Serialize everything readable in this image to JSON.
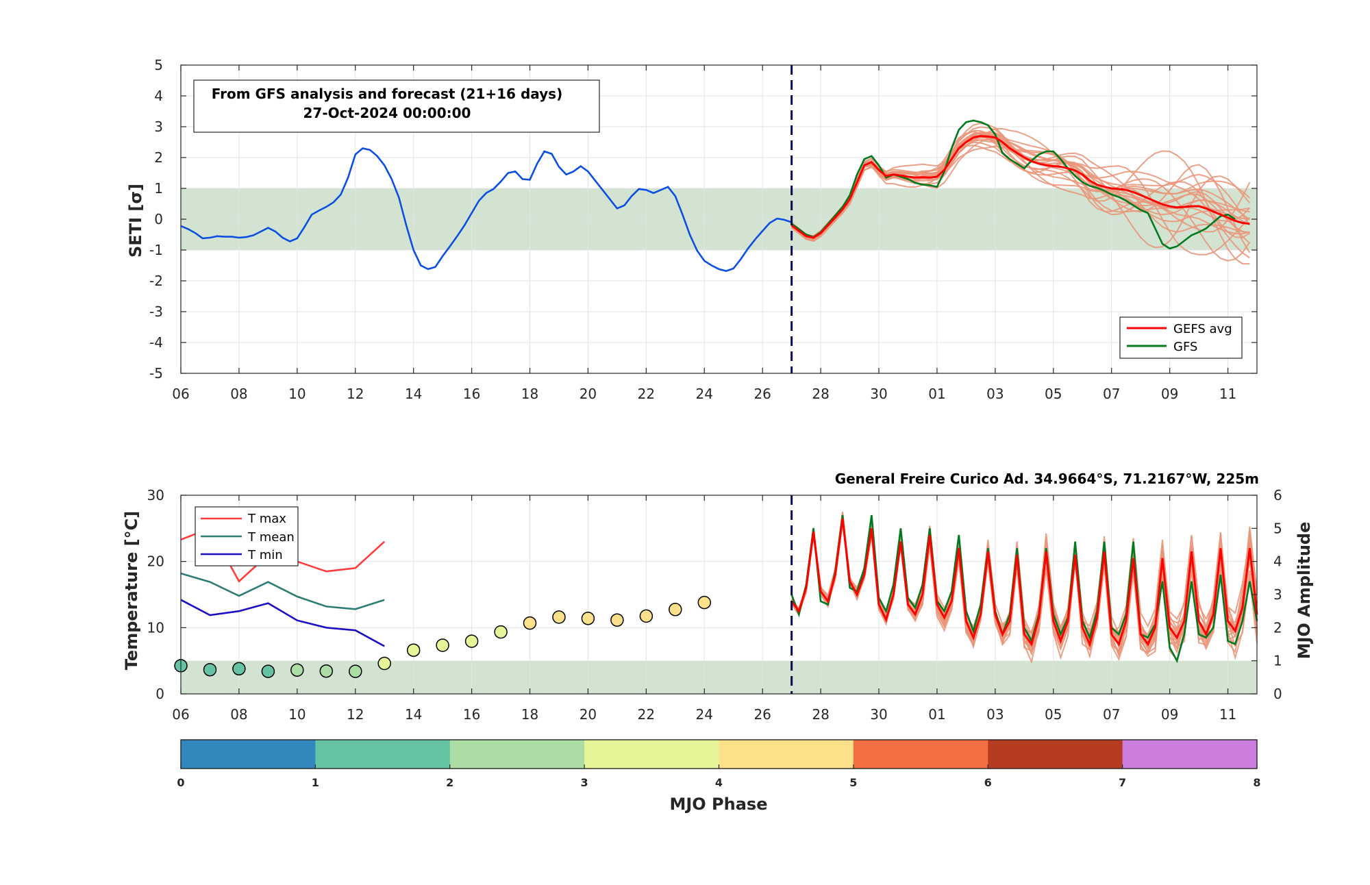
{
  "chart_data": [
    {
      "type": "line",
      "ylabel": "SETI [σ]",
      "ylim": [
        -5,
        5
      ],
      "yticks": [
        "5",
        "4",
        "3",
        "2",
        "1",
        "0",
        "-1",
        "-2",
        "-3",
        "-4",
        "-5"
      ],
      "x_range_days": [
        "2024-10-06",
        "2024-11-12"
      ],
      "xtick_labels": [
        "06",
        "08",
        "10",
        "12",
        "14",
        "16",
        "18",
        "20",
        "22",
        "24",
        "26",
        "28",
        "30",
        "01",
        "03",
        "05",
        "07",
        "09",
        "11"
      ],
      "normal_band": [
        -1,
        1
      ],
      "forecast_start": "2024-10-27",
      "info_box": {
        "line1": "From GFS analysis and forecast (21+16 days)",
        "line2": "27-Oct-2024 00:00:00"
      },
      "legend": {
        "items": [
          "GEFS avg",
          "GFS"
        ],
        "position": "bottom-right"
      },
      "colors": {
        "analysis": "#0c4fe0",
        "gefs_avg": "#ff0000",
        "gfs": "#007a1f",
        "members": "#e9967a",
        "band": "#d2e3d2",
        "forecast_line": "#0a0a50"
      },
      "grid": true,
      "series": [
        {
          "x_start": "2024-10-06",
          "step_days": 0.25,
          "values": [
            -0.22,
            -0.32,
            -0.45,
            -0.62,
            -0.6,
            -0.55,
            -0.57,
            -0.57,
            -0.6,
            -0.58,
            -0.52,
            -0.4,
            -0.28,
            -0.4,
            -0.6,
            -0.72,
            -0.62,
            -0.25,
            0.15,
            0.28,
            0.4,
            0.55,
            0.8,
            1.35,
            2.1,
            2.3,
            2.25,
            2.05,
            1.75,
            1.3,
            0.7,
            -0.2,
            -1.0,
            -1.5,
            -1.62,
            -1.55,
            -1.2,
            -0.88,
            -0.55,
            -0.2,
            0.2,
            0.6,
            0.85,
            0.98,
            1.22,
            1.5,
            1.55,
            1.3,
            1.28,
            1.8,
            2.2,
            2.12,
            1.7,
            1.45,
            1.55,
            1.72,
            1.55,
            1.25,
            0.95,
            0.65,
            0.35,
            0.45,
            0.75,
            0.98,
            0.95,
            0.85,
            0.95,
            1.05,
            0.75,
            0.15,
            -0.5,
            -1.02,
            -1.35,
            -1.5,
            -1.62,
            -1.68,
            -1.6,
            -1.3,
            -0.95,
            -0.65,
            -0.38,
            -0.12,
            0.02,
            -0.02,
            -0.1
          ]
        },
        {
          "name": "GEFS avg",
          "x_start": "2024-10-27",
          "step_days": 0.25,
          "values": [
            -0.2,
            -0.38,
            -0.55,
            -0.6,
            -0.45,
            -0.2,
            0.05,
            0.32,
            0.65,
            1.2,
            1.75,
            1.85,
            1.6,
            1.4,
            1.45,
            1.42,
            1.38,
            1.35,
            1.36,
            1.35,
            1.38,
            1.6,
            1.95,
            2.3,
            2.5,
            2.65,
            2.7,
            2.68,
            2.65,
            2.5,
            2.3,
            2.15,
            2.0,
            1.88,
            1.8,
            1.75,
            1.72,
            1.7,
            1.65,
            1.58,
            1.45,
            1.25,
            1.12,
            1.05,
            1.0,
            0.98,
            0.95,
            0.88,
            0.78,
            0.68,
            0.58,
            0.48,
            0.42,
            0.38,
            0.4,
            0.42,
            0.42,
            0.35,
            0.25,
            0.15,
            0.05,
            -0.05,
            -0.12,
            -0.15
          ]
        },
        {
          "name": "GFS",
          "x_start": "2024-10-27",
          "step_days": 0.25,
          "values": [
            -0.15,
            -0.32,
            -0.5,
            -0.58,
            -0.42,
            -0.15,
            0.12,
            0.4,
            0.78,
            1.45,
            1.95,
            2.05,
            1.75,
            1.35,
            1.45,
            1.38,
            1.3,
            1.18,
            1.12,
            1.1,
            1.05,
            1.55,
            2.3,
            2.9,
            3.15,
            3.2,
            3.15,
            3.05,
            2.75,
            2.15,
            1.95,
            1.8,
            1.65,
            1.9,
            2.1,
            2.2,
            2.2,
            1.95,
            1.65,
            1.4,
            1.2,
            1.08,
            1.02,
            0.92,
            0.8,
            0.72,
            0.6,
            0.45,
            0.3,
            0.2,
            -0.3,
            -0.8,
            -0.95,
            -0.88,
            -0.7,
            -0.52,
            -0.42,
            -0.3,
            -0.1,
            0.1,
            0.15,
            0.0
          ]
        }
      ]
    },
    {
      "type": "line",
      "title": "General Freire Curico Ad. 34.9664°S, 71.2167°W, 225m",
      "ylabel": "Temperature [°C]",
      "y2label": "MJO Amplitude",
      "ylim": [
        0,
        30
      ],
      "y2lim": [
        0,
        6
      ],
      "yticks": [
        "30",
        "20",
        "10",
        "0"
      ],
      "y2ticks": [
        "6",
        "5",
        "4",
        "3",
        "2",
        "1",
        "0"
      ],
      "x_range_days": [
        "2024-10-06",
        "2024-11-12"
      ],
      "xtick_labels": [
        "06",
        "08",
        "10",
        "12",
        "14",
        "16",
        "18",
        "20",
        "22",
        "24",
        "26",
        "28",
        "30",
        "01",
        "03",
        "05",
        "07",
        "09",
        "11"
      ],
      "normal_band_mjo_amplitude": [
        0,
        1
      ],
      "forecast_start": "2024-10-27",
      "legend": {
        "items": [
          "T max",
          "T mean",
          "T min"
        ],
        "position": "top-left"
      },
      "colors": {
        "tmax": "#ff3b3b",
        "tmean": "#2e7d74",
        "tmin": "#1a0fc4",
        "gefs_avg": "#ff0000",
        "gfs": "#007a1f",
        "members": "#e9967a",
        "band": "#d2e3d2"
      },
      "grid": true,
      "series": [
        {
          "name": "T max",
          "x": [
            "2024-10-06",
            "2024-10-07",
            "2024-10-08",
            "2024-10-09",
            "2024-10-10",
            "2024-10-11",
            "2024-10-12",
            "2024-10-13"
          ],
          "values": [
            23.3,
            25.0,
            17.0,
            21.0,
            20.0,
            18.5,
            19.0,
            23.0
          ]
        },
        {
          "name": "T mean",
          "x": [
            "2024-10-06",
            "2024-10-07",
            "2024-10-08",
            "2024-10-09",
            "2024-10-10",
            "2024-10-11",
            "2024-10-12",
            "2024-10-13"
          ],
          "values": [
            18.2,
            16.9,
            14.8,
            16.9,
            14.7,
            13.2,
            12.8,
            14.2
          ]
        },
        {
          "name": "T min",
          "x": [
            "2024-10-06",
            "2024-10-07",
            "2024-10-08",
            "2024-10-09",
            "2024-10-10",
            "2024-10-11",
            "2024-10-12",
            "2024-10-13"
          ],
          "values": [
            14.2,
            11.9,
            12.5,
            13.7,
            11.1,
            10.0,
            9.6,
            7.2
          ]
        },
        {
          "name": "MJO amplitude / phase (dots)",
          "x_start": "2024-10-06",
          "step_days": 1,
          "amplitude": [
            0.85,
            0.73,
            0.76,
            0.68,
            0.72,
            0.69,
            0.68,
            0.92,
            1.32,
            1.47,
            1.59,
            1.87,
            2.14,
            2.32,
            2.28,
            2.23,
            2.35,
            2.55,
            2.76
          ],
          "phase": [
            1.2,
            1.8,
            1.2,
            1.8,
            2.6,
            2.0,
            2.0,
            3.5,
            3.6,
            3.5,
            3.4,
            3.5,
            4.2,
            4.2,
            4.2,
            4.2,
            4.2,
            4.2,
            4.2
          ]
        },
        {
          "name": "GEFS avg",
          "x_start": "2024-10-27",
          "step_days": 0.25,
          "values": [
            14,
            12.5,
            16,
            24.5,
            15.5,
            14,
            18,
            26.5,
            17,
            15,
            18,
            25,
            13.5,
            11.2,
            15,
            23,
            13.5,
            12,
            15,
            24,
            13.5,
            11.5,
            14,
            22,
            11,
            8.5,
            12,
            21.5,
            12,
            9,
            11,
            21,
            9,
            7.5,
            11.5,
            21.5,
            11,
            8,
            11,
            21,
            10,
            7.5,
            11.5,
            21.5,
            9,
            7.5,
            11,
            20.5,
            9,
            7.5,
            10,
            20.5,
            10,
            8.5,
            11,
            21.5,
            11,
            9,
            12,
            22,
            11,
            9.5,
            13,
            22,
            12
          ]
        },
        {
          "name": "GFS",
          "x_start": "2024-10-27",
          "step_days": 0.25,
          "values": [
            15,
            12,
            16.5,
            25,
            14,
            13.5,
            18.5,
            27,
            16,
            15.5,
            19,
            27,
            14.5,
            12.5,
            16.5,
            25,
            14.5,
            13,
            16.5,
            25,
            14,
            12.5,
            15.5,
            24,
            12.5,
            9.5,
            13.5,
            22,
            12.5,
            9,
            12,
            22,
            10,
            8,
            12,
            22,
            12,
            9,
            11.5,
            23,
            11,
            8.5,
            12.5,
            23,
            10,
            9,
            12,
            23,
            9,
            8.5,
            10.5,
            17,
            7,
            5,
            9,
            17,
            9,
            8.5,
            10,
            18,
            8,
            7.5,
            11,
            17,
            11
          ]
        }
      ]
    },
    {
      "type": "colorbar",
      "label": "MJO Phase",
      "ticks": [
        "0",
        "1",
        "2",
        "3",
        "4",
        "5",
        "6",
        "7",
        "8"
      ],
      "colors": [
        "#3288bd",
        "#66c2a5",
        "#abdda4",
        "#e6f598",
        "#fee08b",
        "#f46d43",
        "#b53c21",
        "#cc7ede"
      ]
    }
  ]
}
